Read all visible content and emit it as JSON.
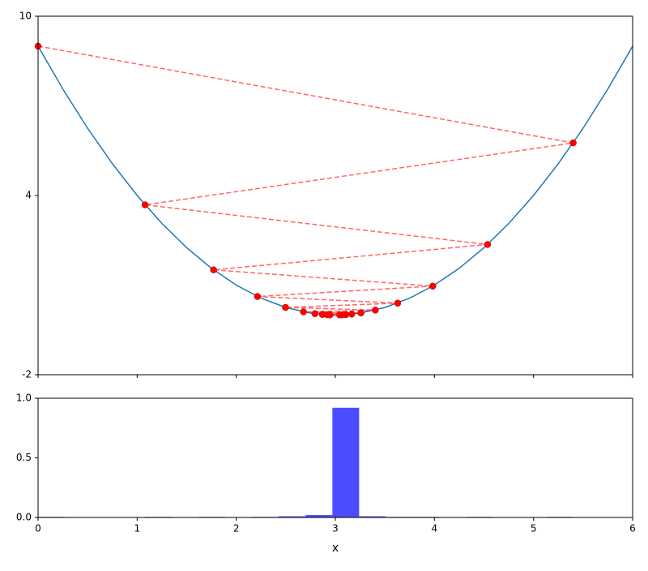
{
  "chart_data": [
    {
      "type": "line",
      "xlim": [
        0,
        6
      ],
      "ylim": [
        -2,
        10
      ],
      "xticks": [
        0,
        1,
        2,
        3,
        4,
        5,
        6
      ],
      "yticks": [
        -2,
        4,
        10
      ],
      "series": [
        {
          "color": "#1f77b4",
          "style": "solid",
          "x": [
            0,
            0.25,
            0.5,
            0.75,
            1,
            1.25,
            1.5,
            1.75,
            2,
            2.25,
            2.5,
            2.75,
            3,
            3.25,
            3.5,
            3.75,
            4,
            4.25,
            4.5,
            4.75,
            5,
            5.25,
            5.5,
            5.75,
            6
          ],
          "values": [
            9,
            7.5625,
            6.25,
            5.0625,
            4,
            3.0625,
            2.25,
            1.5625,
            1,
            0.5625,
            0.25,
            0.0625,
            0,
            0.0625,
            0.25,
            0.5625,
            1,
            1.5625,
            2.25,
            3.0625,
            4,
            5.0625,
            6.25,
            7.5625,
            9
          ]
        },
        {
          "color": "#ff0000",
          "style": "dashed-markers",
          "x": [
            0,
            5.4,
            1.08,
            4.536,
            1.771,
            3.983,
            2.214,
            3.629,
            2.497,
            3.403,
            2.678,
            3.258,
            2.794,
            3.165,
            2.868,
            3.106,
            2.916,
            3.068,
            2.946,
            3.043
          ],
          "values": [
            9,
            5.76,
            3.686,
            2.359,
            1.51,
            0.966,
            0.618,
            0.396,
            0.253,
            0.162,
            0.104,
            0.066,
            0.043,
            0.027,
            0.017,
            0.011,
            0.007,
            0.005,
            0.003,
            0.002
          ]
        }
      ]
    },
    {
      "type": "histogram",
      "color": "#0000ff",
      "xlabel": "x",
      "xlim": [
        0,
        6
      ],
      "ylim": [
        0,
        1
      ],
      "xticks": [
        0,
        1,
        2,
        3,
        4,
        5,
        6
      ],
      "yticks": [
        {
          "value": 0,
          "label": "0.0"
        },
        {
          "value": 0.5,
          "label": "0.5"
        },
        {
          "value": 1,
          "label": "1.0"
        }
      ],
      "bins": [
        0,
        0.27,
        0.54,
        0.81,
        1.08,
        1.35,
        1.62,
        1.89,
        2.16,
        2.43,
        2.7,
        2.97,
        3.24,
        3.51,
        3.78,
        4.05,
        4.32,
        4.59,
        4.86,
        5.13,
        5.4
      ],
      "values": [
        0.005,
        0,
        0,
        0,
        0.005,
        0,
        0.005,
        0,
        0.005,
        0.01,
        0.02,
        0.92,
        0.01,
        0.005,
        0.005,
        0,
        0.005,
        0,
        0,
        0.005
      ]
    }
  ]
}
